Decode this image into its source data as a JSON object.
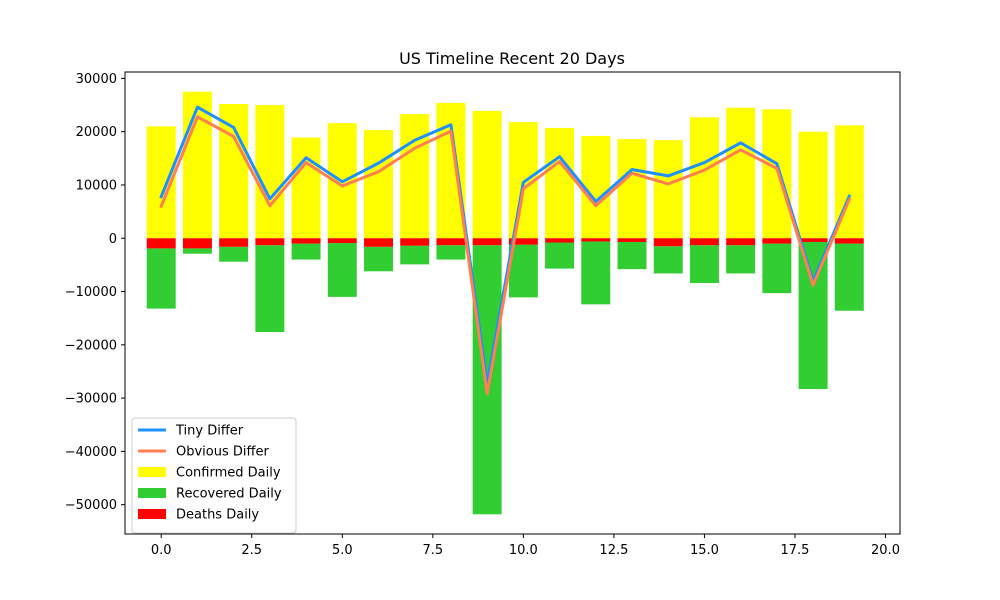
{
  "chart_data": {
    "type": "bar",
    "title": "US Timeline Recent 20 Days",
    "xlabel": "",
    "ylabel": "",
    "xlim": [
      -1.0,
      20.4
    ],
    "ylim": [
      -55500,
      31200
    ],
    "xticks": [
      0.0,
      2.5,
      5.0,
      7.5,
      10.0,
      12.5,
      15.0,
      17.5,
      20.0
    ],
    "xtick_labels": [
      "0.0",
      "2.5",
      "5.0",
      "7.5",
      "10.0",
      "12.5",
      "15.0",
      "17.5",
      "20.0"
    ],
    "yticks": [
      30000,
      20000,
      10000,
      0,
      -10000,
      -20000,
      -30000,
      -40000,
      -50000
    ],
    "ytick_labels": [
      "30000",
      "20000",
      "10000",
      "0",
      "−10000",
      "−20000",
      "−30000",
      "−40000",
      "−50000"
    ],
    "grid": false,
    "legend_position": "lower-left",
    "x": [
      0,
      1,
      2,
      3,
      4,
      5,
      6,
      7,
      8,
      9,
      10,
      11,
      12,
      13,
      14,
      15,
      16,
      17,
      18,
      19
    ],
    "bars": [
      {
        "name": "Confirmed Daily",
        "color": "#ffff00",
        "base": "zero",
        "values": [
          21000,
          27500,
          25200,
          25000,
          18900,
          21600,
          20300,
          23300,
          25400,
          23900,
          21800,
          20700,
          19200,
          18600,
          18400,
          22700,
          24500,
          24200,
          20000,
          21200
        ]
      },
      {
        "name": "Recovered Daily",
        "color": "#32cd32",
        "base": "deaths",
        "values": [
          -11300,
          -1000,
          -2800,
          -16300,
          -3000,
          -10100,
          -4600,
          -3500,
          -2700,
          -50500,
          -9900,
          -4900,
          -11800,
          -5100,
          -5100,
          -7100,
          -5300,
          -9300,
          -27600,
          -12600
        ]
      },
      {
        "name": "Deaths Daily",
        "color": "#ff0000",
        "base": "zero",
        "values": [
          -1900,
          -1900,
          -1600,
          -1300,
          -1000,
          -900,
          -1600,
          -1400,
          -1300,
          -1300,
          -1200,
          -800,
          -600,
          -700,
          -1500,
          -1300,
          -1300,
          -1000,
          -700,
          -1000
        ]
      }
    ],
    "series": [
      {
        "name": "Tiny Differ",
        "color": "#1e90ff",
        "values": [
          7800,
          24600,
          20800,
          7400,
          15100,
          10600,
          14100,
          18400,
          21300,
          -27300,
          10500,
          15300,
          6900,
          12900,
          11700,
          14200,
          17900,
          14000,
          -8100,
          7900
        ]
      },
      {
        "name": "Obvious Differ",
        "color": "#ff7f50",
        "values": [
          6000,
          22800,
          19100,
          6100,
          14200,
          9800,
          12500,
          16900,
          20100,
          -29200,
          9300,
          14400,
          6100,
          12200,
          10200,
          12800,
          16600,
          13100,
          -8800,
          7300
        ]
      }
    ],
    "legend": [
      {
        "label": "Tiny Differ",
        "kind": "line",
        "color": "#1e90ff"
      },
      {
        "label": "Obvious Differ",
        "kind": "line",
        "color": "#ff7f50"
      },
      {
        "label": "Confirmed Daily",
        "kind": "patch",
        "color": "#ffff00"
      },
      {
        "label": "Recovered Daily",
        "kind": "patch",
        "color": "#32cd32"
      },
      {
        "label": "Deaths Daily",
        "kind": "patch",
        "color": "#ff0000"
      }
    ]
  }
}
